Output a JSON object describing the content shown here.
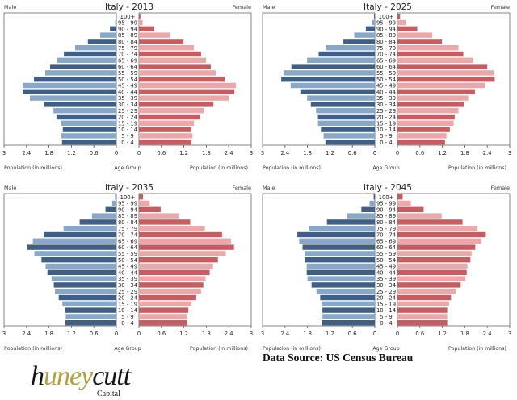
{
  "chart_data": [
    {
      "type": "bar",
      "subtype": "population-pyramid",
      "title": "Italy - 2013",
      "left_label": "Male",
      "right_label": "Female",
      "xlabel_left": "Population (in millions)",
      "xlabel_center": "Age Group",
      "xlabel_right": "Population (in millions)",
      "xlim": [
        0,
        3
      ],
      "xticks": [
        "3",
        "2.4",
        "1.8",
        "1.2",
        "0.6",
        "0"
      ],
      "xticks_right": [
        "0",
        "0.6",
        "1.2",
        "1.8",
        "2.4",
        "3"
      ],
      "categories": [
        "100+",
        "95 - 99",
        "90 - 94",
        "85 - 89",
        "80 - 84",
        "75 - 79",
        "70 - 74",
        "65 - 69",
        "60 - 64",
        "55 - 59",
        "50 - 54",
        "45 - 49",
        "40 - 44",
        "35 - 39",
        "30 - 34",
        "25 - 29",
        "20 - 24",
        "15 - 19",
        "10 - 14",
        "5 - 9",
        "0 - 4"
      ],
      "series": [
        {
          "name": "Male",
          "values": [
            0.01,
            0.03,
            0.17,
            0.43,
            0.76,
            1.1,
            1.4,
            1.58,
            1.77,
            1.9,
            2.2,
            2.5,
            2.5,
            2.31,
            1.92,
            1.68,
            1.6,
            1.47,
            1.43,
            1.47,
            1.45
          ]
        },
        {
          "name": "Female",
          "values": [
            0.04,
            0.1,
            0.41,
            0.82,
            1.19,
            1.47,
            1.66,
            1.79,
            1.92,
            2.05,
            2.29,
            2.59,
            2.55,
            2.4,
            1.99,
            1.73,
            1.62,
            1.47,
            1.4,
            1.43,
            1.4
          ]
        }
      ]
    },
    {
      "type": "bar",
      "subtype": "population-pyramid",
      "title": "Italy - 2025",
      "left_label": "Male",
      "right_label": "Female",
      "xlabel_left": "Population (in millions)",
      "xlabel_center": "Age Group",
      "xlabel_right": "Population (in millions)",
      "xlim": [
        0,
        3
      ],
      "xticks": [
        "3",
        "2.4",
        "1.8",
        "1.2",
        "0.6",
        "0"
      ],
      "xticks_right": [
        "0",
        "0.6",
        "1.2",
        "1.8",
        "2.4",
        "3"
      ],
      "categories": [
        "100+",
        "95 - 99",
        "90 - 94",
        "85 - 89",
        "80 - 84",
        "75 - 79",
        "70 - 74",
        "65 - 69",
        "60 - 64",
        "55 - 59",
        "50 - 54",
        "45 - 49",
        "40 - 44",
        "35 - 39",
        "30 - 34",
        "25 - 29",
        "20 - 24",
        "15 - 19",
        "10 - 14",
        "5 - 9",
        "0 - 4"
      ],
      "series": [
        {
          "name": "Male",
          "values": [
            0.02,
            0.07,
            0.24,
            0.55,
            0.84,
            1.3,
            1.5,
            1.81,
            2.23,
            2.44,
            2.5,
            2.25,
            1.99,
            1.81,
            1.71,
            1.57,
            1.52,
            1.52,
            1.44,
            1.37,
            1.32
          ]
        },
        {
          "name": "Female",
          "values": [
            0.07,
            0.22,
            0.53,
            0.93,
            1.19,
            1.63,
            1.76,
            2.02,
            2.4,
            2.57,
            2.6,
            2.34,
            2.07,
            1.89,
            1.77,
            1.63,
            1.53,
            1.5,
            1.4,
            1.31,
            1.27
          ]
        }
      ]
    },
    {
      "type": "bar",
      "subtype": "population-pyramid",
      "title": "Italy - 2035",
      "left_label": "Male",
      "right_label": "Female",
      "xlabel_left": "Population (in millions)",
      "xlabel_center": "Age Group",
      "xlabel_right": "Population (in millions)",
      "xlim": [
        0,
        3
      ],
      "xticks": [
        "3",
        "2.4",
        "1.8",
        "1.2",
        "0.6",
        "0"
      ],
      "xticks_right": [
        "0",
        "0.6",
        "1.2",
        "1.8",
        "2.4",
        "3"
      ],
      "categories": [
        "100+",
        "95 - 99",
        "90 - 94",
        "85 - 89",
        "80 - 84",
        "75 - 79",
        "70 - 74",
        "65 - 69",
        "60 - 64",
        "55 - 59",
        "50 - 54",
        "45 - 49",
        "40 - 44",
        "35 - 39",
        "30 - 34",
        "25 - 29",
        "20 - 24",
        "15 - 19",
        "10 - 14",
        "5 - 9",
        "0 - 4"
      ],
      "series": [
        {
          "name": "Male",
          "values": [
            0.03,
            0.11,
            0.29,
            0.65,
            0.98,
            1.41,
            1.93,
            2.23,
            2.39,
            2.19,
            2.0,
            1.89,
            1.84,
            1.73,
            1.67,
            1.64,
            1.54,
            1.44,
            1.37,
            1.35,
            1.36
          ]
        },
        {
          "name": "Female",
          "values": [
            0.11,
            0.29,
            0.58,
            1.06,
            1.37,
            1.76,
            2.22,
            2.46,
            2.54,
            2.32,
            2.11,
            1.98,
            1.89,
            1.78,
            1.72,
            1.66,
            1.53,
            1.4,
            1.32,
            1.29,
            1.29
          ]
        }
      ]
    },
    {
      "type": "bar",
      "subtype": "population-pyramid",
      "title": "Italy - 2045",
      "left_label": "Male",
      "right_label": "Female",
      "xlabel_left": "Population (in millions)",
      "xlabel_center": "Age Group",
      "xlabel_right": "Population (in millions)",
      "xlim": [
        0,
        3
      ],
      "xticks": [
        "3",
        "2.4",
        "1.8",
        "1.2",
        "0.6",
        "0"
      ],
      "xticks_right": [
        "0",
        "0.6",
        "1.2",
        "1.8",
        "2.4",
        "3"
      ],
      "categories": [
        "100+",
        "95 - 99",
        "90 - 94",
        "85 - 89",
        "80 - 84",
        "75 - 79",
        "70 - 74",
        "65 - 69",
        "60 - 64",
        "55 - 59",
        "50 - 54",
        "45 - 49",
        "40 - 44",
        "35 - 39",
        "30 - 34",
        "25 - 29",
        "20 - 24",
        "15 - 19",
        "10 - 14",
        "5 - 9",
        "0 - 4"
      ],
      "series": [
        {
          "name": "Male",
          "values": [
            0.03,
            0.14,
            0.36,
            0.74,
            1.28,
            1.75,
            2.07,
            2.02,
            1.93,
            1.87,
            1.87,
            1.82,
            1.82,
            1.8,
            1.69,
            1.56,
            1.46,
            1.41,
            1.4,
            1.4,
            1.41
          ]
        },
        {
          "name": "Female",
          "values": [
            0.14,
            0.36,
            0.7,
            1.18,
            1.74,
            2.14,
            2.36,
            2.24,
            2.08,
            1.98,
            1.95,
            1.87,
            1.85,
            1.82,
            1.69,
            1.56,
            1.43,
            1.38,
            1.33,
            1.33,
            1.33
          ]
        }
      ]
    }
  ],
  "colors": {
    "male_dark": "#3f5f86",
    "male_light": "#87a7cb",
    "female_dark": "#c95c60",
    "female_light": "#eea7a8",
    "axis": "#555555"
  },
  "footer": {
    "source": "Data Source:  US Census Bureau",
    "logo_prefix": "h",
    "logo_gold": "uney",
    "logo_suffix": "cutt",
    "logo_sub": "Capital"
  }
}
